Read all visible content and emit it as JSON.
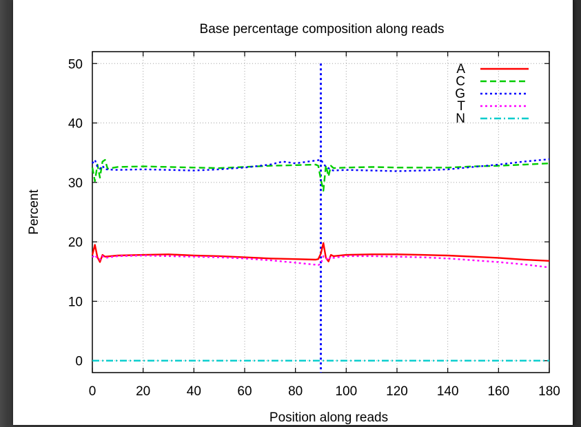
{
  "chart_data": {
    "type": "line",
    "title": "Base percentage composition along reads",
    "xlabel": "Position along reads",
    "ylabel": "Percent",
    "xlim": [
      0,
      180
    ],
    "ylim": [
      -2,
      52
    ],
    "xticks": [
      0,
      20,
      40,
      60,
      80,
      100,
      120,
      140,
      160,
      180
    ],
    "yticks": [
      0,
      10,
      20,
      30,
      40,
      50
    ],
    "grid": true,
    "legend_position": "top-right",
    "series": [
      {
        "name": "A",
        "color": "#ff0000",
        "dash": "solid",
        "x": [
          0,
          1,
          2,
          3,
          4,
          5,
          10,
          20,
          30,
          40,
          50,
          60,
          70,
          80,
          88,
          89,
          90,
          91,
          92,
          93,
          94,
          95,
          100,
          110,
          120,
          130,
          140,
          150,
          160,
          170,
          180
        ],
        "y": [
          17.8,
          19.5,
          17.4,
          16.6,
          17.8,
          17.5,
          17.7,
          17.8,
          17.9,
          17.7,
          17.6,
          17.4,
          17.2,
          17.1,
          17.0,
          17.1,
          18.0,
          19.8,
          17.3,
          16.7,
          17.8,
          17.6,
          17.8,
          17.9,
          17.9,
          17.8,
          17.7,
          17.5,
          17.3,
          17.0,
          16.8
        ]
      },
      {
        "name": "C",
        "color": "#00cc00",
        "dash": "dashed",
        "x": [
          0,
          1,
          2,
          3,
          4,
          5,
          6,
          10,
          20,
          30,
          40,
          50,
          60,
          70,
          80,
          88,
          89,
          90,
          91,
          92,
          93,
          94,
          95,
          100,
          110,
          120,
          130,
          140,
          150,
          160,
          170,
          180
        ],
        "y": [
          32.5,
          30.2,
          33.0,
          30.8,
          33.5,
          33.8,
          32.3,
          32.6,
          32.7,
          32.6,
          32.5,
          32.4,
          32.6,
          32.8,
          32.9,
          33.0,
          32.8,
          30.5,
          28.6,
          32.9,
          31.0,
          32.8,
          32.4,
          32.5,
          32.6,
          32.5,
          32.5,
          32.5,
          32.7,
          32.8,
          33.0,
          33.2
        ]
      },
      {
        "name": "G",
        "color": "#0000ff",
        "dash": "dotted",
        "x": [
          0,
          1,
          2,
          3,
          4,
          5,
          10,
          20,
          30,
          40,
          50,
          60,
          70,
          75,
          80,
          85,
          90,
          91,
          92,
          93,
          94,
          95,
          100,
          110,
          120,
          130,
          140,
          150,
          160,
          170,
          180
        ],
        "y": [
          33.2,
          33.8,
          32.6,
          32.3,
          32.8,
          32.2,
          32.1,
          32.2,
          32.1,
          32.0,
          32.2,
          32.5,
          33.0,
          33.5,
          33.2,
          33.5,
          33.8,
          33.2,
          32.6,
          32.4,
          32.1,
          32.0,
          32.1,
          32.0,
          31.9,
          32.0,
          32.2,
          32.6,
          33.0,
          33.5,
          33.9
        ]
      },
      {
        "name": "T",
        "color": "#ff00ff",
        "dash": "dotted",
        "x": [
          0,
          1,
          2,
          3,
          4,
          5,
          10,
          20,
          30,
          40,
          50,
          60,
          70,
          80,
          89,
          90,
          91,
          92,
          93,
          94,
          95,
          100,
          110,
          120,
          130,
          140,
          150,
          160,
          170,
          180
        ],
        "y": [
          17.4,
          17.8,
          17.2,
          17.0,
          17.6,
          17.3,
          17.6,
          17.7,
          17.6,
          17.5,
          17.4,
          17.2,
          16.9,
          16.5,
          16.1,
          16.3,
          17.6,
          17.3,
          16.9,
          17.5,
          17.3,
          17.6,
          17.6,
          17.5,
          17.4,
          17.2,
          16.9,
          16.6,
          16.2,
          15.7
        ]
      },
      {
        "name": "N",
        "color": "#00cccc",
        "dash": "dashdot",
        "x": [
          0,
          90,
          180
        ],
        "y": [
          0,
          0,
          0
        ]
      }
    ],
    "annotations": [
      {
        "type": "vertical-line",
        "x": 90,
        "y_top": 50,
        "color": "#0000ff",
        "dash": "dotted"
      }
    ]
  }
}
